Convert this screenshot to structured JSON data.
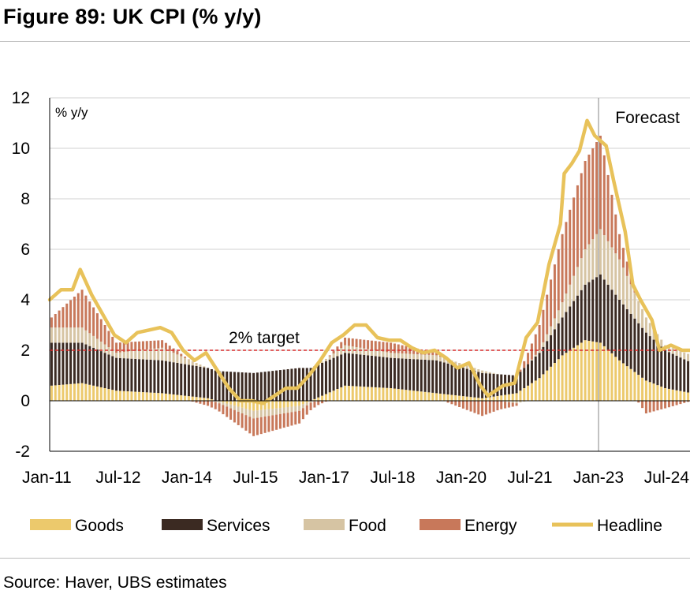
{
  "title": "Figure 89: UK CPI (% y/y)",
  "source": "Source: Haver, UBS estimates",
  "colors": {
    "goods": "#ecc96c",
    "services": "#3b2a22",
    "food": "#d6c4a3",
    "energy": "#c8785a",
    "headline": "#e8c25a",
    "target_line": "#d92b2b",
    "forecast_line": "#9a9a9a",
    "grid": "#d0d0d0"
  },
  "chart_data": {
    "type": "bar",
    "stacked": true,
    "ylabel": "% y/y",
    "ylim": [
      -2,
      12
    ],
    "yticks": [
      -2,
      0,
      2,
      4,
      6,
      8,
      10,
      12
    ],
    "xlim": [
      "2011-01",
      "2025-01"
    ],
    "xticks": [
      "Jan-11",
      "Jul-12",
      "Jan-14",
      "Jul-15",
      "Jan-17",
      "Jul-18",
      "Jan-20",
      "Jul-21",
      "Jan-23",
      "Jul-24"
    ],
    "grid": "horizontal",
    "legend_position": "bottom",
    "annotations": {
      "target_label": "2% target",
      "target_value": 2,
      "forecast_label": "Forecast",
      "forecast_start": "2023-01"
    },
    "anchors": {
      "headline": [
        [
          "2011-01",
          4.0
        ],
        [
          "2011-04",
          4.4
        ],
        [
          "2011-07",
          4.4
        ],
        [
          "2011-09",
          5.2
        ],
        [
          "2011-12",
          4.2
        ],
        [
          "2012-03",
          3.4
        ],
        [
          "2012-06",
          2.6
        ],
        [
          "2012-09",
          2.3
        ],
        [
          "2012-12",
          2.7
        ],
        [
          "2013-03",
          2.8
        ],
        [
          "2013-06",
          2.9
        ],
        [
          "2013-09",
          2.7
        ],
        [
          "2013-12",
          2.0
        ],
        [
          "2014-03",
          1.6
        ],
        [
          "2014-06",
          1.9
        ],
        [
          "2014-09",
          1.2
        ],
        [
          "2014-12",
          0.5
        ],
        [
          "2015-03",
          0.0
        ],
        [
          "2015-06",
          0.0
        ],
        [
          "2015-09",
          -0.1
        ],
        [
          "2015-12",
          0.2
        ],
        [
          "2016-03",
          0.5
        ],
        [
          "2016-06",
          0.5
        ],
        [
          "2016-09",
          1.0
        ],
        [
          "2016-12",
          1.6
        ],
        [
          "2017-03",
          2.3
        ],
        [
          "2017-06",
          2.6
        ],
        [
          "2017-09",
          3.0
        ],
        [
          "2017-12",
          3.0
        ],
        [
          "2018-03",
          2.5
        ],
        [
          "2018-06",
          2.4
        ],
        [
          "2018-09",
          2.4
        ],
        [
          "2018-12",
          2.1
        ],
        [
          "2019-03",
          1.9
        ],
        [
          "2019-06",
          2.0
        ],
        [
          "2019-09",
          1.7
        ],
        [
          "2019-12",
          1.3
        ],
        [
          "2020-03",
          1.5
        ],
        [
          "2020-06",
          0.6
        ],
        [
          "2020-08",
          0.2
        ],
        [
          "2020-12",
          0.6
        ],
        [
          "2021-03",
          0.7
        ],
        [
          "2021-06",
          2.5
        ],
        [
          "2021-09",
          3.1
        ],
        [
          "2021-12",
          5.4
        ],
        [
          "2022-03",
          7.0
        ],
        [
          "2022-04",
          9.0
        ],
        [
          "2022-06",
          9.4
        ],
        [
          "2022-08",
          9.9
        ],
        [
          "2022-10",
          11.1
        ],
        [
          "2022-12",
          10.5
        ],
        [
          "2023-03",
          10.1
        ],
        [
          "2023-05",
          8.7
        ],
        [
          "2023-08",
          6.7
        ],
        [
          "2023-10",
          4.6
        ],
        [
          "2023-12",
          4.0
        ],
        [
          "2024-03",
          3.2
        ],
        [
          "2024-05",
          2.0
        ],
        [
          "2024-08",
          2.2
        ],
        [
          "2024-11",
          2.0
        ],
        [
          "2025-01",
          2.0
        ]
      ],
      "goods": [
        [
          "2011-01",
          0.6
        ],
        [
          "2011-09",
          0.7
        ],
        [
          "2012-06",
          0.4
        ],
        [
          "2013-06",
          0.3
        ],
        [
          "2014-06",
          0.1
        ],
        [
          "2015-06",
          -0.4
        ],
        [
          "2016-06",
          -0.2
        ],
        [
          "2017-06",
          0.6
        ],
        [
          "2018-06",
          0.5
        ],
        [
          "2019-06",
          0.3
        ],
        [
          "2020-06",
          0.1
        ],
        [
          "2021-03",
          0.3
        ],
        [
          "2021-09",
          0.9
        ],
        [
          "2022-03",
          1.8
        ],
        [
          "2022-09",
          2.4
        ],
        [
          "2023-01",
          2.3
        ],
        [
          "2023-06",
          1.6
        ],
        [
          "2024-01",
          0.8
        ],
        [
          "2024-06",
          0.5
        ],
        [
          "2025-01",
          0.3
        ]
      ],
      "services": [
        [
          "2011-01",
          1.7
        ],
        [
          "2011-09",
          1.6
        ],
        [
          "2012-06",
          1.3
        ],
        [
          "2013-06",
          1.3
        ],
        [
          "2014-06",
          1.2
        ],
        [
          "2015-06",
          1.1
        ],
        [
          "2016-06",
          1.3
        ],
        [
          "2017-06",
          1.3
        ],
        [
          "2018-06",
          1.2
        ],
        [
          "2019-06",
          1.3
        ],
        [
          "2020-06",
          1.0
        ],
        [
          "2021-03",
          0.7
        ],
        [
          "2021-09",
          1.0
        ],
        [
          "2022-03",
          1.5
        ],
        [
          "2022-09",
          2.2
        ],
        [
          "2023-01",
          2.7
        ],
        [
          "2023-06",
          2.4
        ],
        [
          "2024-01",
          1.9
        ],
        [
          "2024-06",
          1.5
        ],
        [
          "2025-01",
          1.2
        ]
      ],
      "food": [
        [
          "2011-01",
          0.6
        ],
        [
          "2011-09",
          0.6
        ],
        [
          "2012-06",
          0.2
        ],
        [
          "2013-06",
          0.5
        ],
        [
          "2014-06",
          0.0
        ],
        [
          "2015-06",
          -0.3
        ],
        [
          "2016-06",
          -0.2
        ],
        [
          "2017-06",
          0.3
        ],
        [
          "2018-06",
          0.2
        ],
        [
          "2019-06",
          0.2
        ],
        [
          "2020-06",
          0.1
        ],
        [
          "2021-03",
          -0.1
        ],
        [
          "2021-09",
          0.1
        ],
        [
          "2022-03",
          0.6
        ],
        [
          "2022-09",
          1.4
        ],
        [
          "2023-01",
          1.8
        ],
        [
          "2023-06",
          1.6
        ],
        [
          "2024-01",
          0.6
        ],
        [
          "2024-06",
          0.2
        ],
        [
          "2025-01",
          0.3
        ]
      ],
      "energy": [
        [
          "2011-01",
          0.4
        ],
        [
          "2011-09",
          1.5
        ],
        [
          "2012-06",
          0.4
        ],
        [
          "2013-06",
          0.3
        ],
        [
          "2014-06",
          -0.2
        ],
        [
          "2015-06",
          -0.7
        ],
        [
          "2016-06",
          -0.5
        ],
        [
          "2017-06",
          0.3
        ],
        [
          "2018-06",
          0.4
        ],
        [
          "2019-06",
          0.1
        ],
        [
          "2020-06",
          -0.6
        ],
        [
          "2021-03",
          -0.1
        ],
        [
          "2021-09",
          1.0
        ],
        [
          "2022-03",
          2.7
        ],
        [
          "2022-09",
          3.5
        ],
        [
          "2023-01",
          3.7
        ],
        [
          "2023-06",
          1.0
        ],
        [
          "2024-01",
          -0.5
        ],
        [
          "2024-06",
          -0.3
        ],
        [
          "2025-01",
          0.0
        ]
      ]
    },
    "series": [
      {
        "key": "goods",
        "name": "Goods",
        "kind": "bar"
      },
      {
        "key": "services",
        "name": "Services",
        "kind": "bar"
      },
      {
        "key": "food",
        "name": "Food",
        "kind": "bar"
      },
      {
        "key": "energy",
        "name": "Energy",
        "kind": "bar"
      },
      {
        "key": "headline",
        "name": "Headline",
        "kind": "line"
      }
    ]
  }
}
